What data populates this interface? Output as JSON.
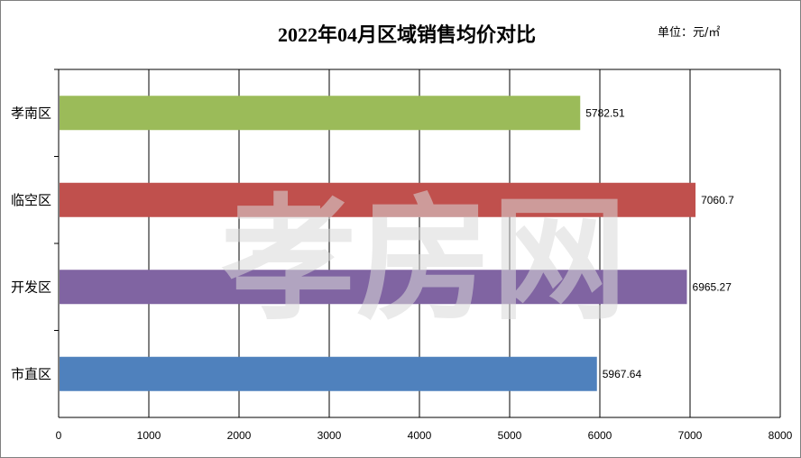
{
  "chart_data": {
    "type": "bar",
    "orientation": "horizontal",
    "title": "2022年04月区域销售均价对比",
    "unit": "单位：元/㎡",
    "categories": [
      "孝南区",
      "临空区",
      "开发区",
      "市直区"
    ],
    "values": [
      5782.51,
      7060.7,
      6965.27,
      5967.64
    ],
    "data_labels": [
      "5782.51",
      "7060.7",
      "6965.27",
      "5967.64"
    ],
    "colors": [
      "#9bbb59",
      "#c0504d",
      "#8064a2",
      "#4f81bd"
    ],
    "xlim": [
      0,
      8000
    ],
    "xticks": [
      0,
      1000,
      2000,
      3000,
      4000,
      5000,
      6000,
      7000,
      8000
    ],
    "grid": true,
    "legend": "none"
  },
  "watermark": "孝房网"
}
